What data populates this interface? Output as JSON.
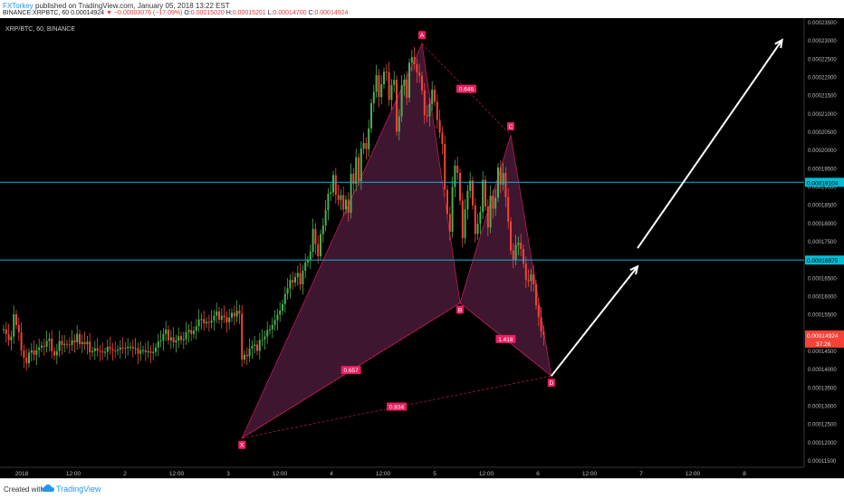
{
  "header": {
    "author": "FXTorkey",
    "published_text": "published on TradingView.com, January 05, 2018 13:22 EST",
    "symbol": "BINANCE:XRPBTC, 60",
    "last": "0.00014924",
    "change_arrow": "▼",
    "change": "−0.00003076 (−17.09%)",
    "ohlc_o_label": "O:",
    "ohlc_o": "0.00015020",
    "ohlc_h_label": "H:",
    "ohlc_h": "0.00015201",
    "ohlc_l_label": "L:",
    "ohlc_l": "0.00014700",
    "ohlc_c_label": "C:",
    "ohlc_c": "0.00014924"
  },
  "chart_legend": "XRP/BTC, 60, BINANCE",
  "footer": {
    "created_with": "Created with",
    "brand": "TradingView"
  },
  "colors": {
    "background": "#000000",
    "up": "#4caf50",
    "down": "#f44336",
    "pattern_fill": "#4a1a38",
    "pattern_line": "#e91e63",
    "point_label_bg": "#e91e63",
    "level_line": "#00bcd4",
    "last_price_bg": "#f44336",
    "level_label_bg": "#00bcd4",
    "arrow": "#ffffff"
  },
  "chart_data": {
    "type": "candlestick",
    "title": "",
    "symbol": "XRP/BTC",
    "interval": "60",
    "exchange": "BINANCE",
    "ylim": [
      0.000113,
      0.000236
    ],
    "y_ticks": [
      "0.00023500",
      "0.00023000",
      "0.00022500",
      "0.00022000",
      "0.00021500",
      "0.00021000",
      "0.00020500",
      "0.00020000",
      "0.00019500",
      "0.00019000",
      "0.00018500",
      "0.00018000",
      "0.00017500",
      "0.00017000",
      "0.00016500",
      "0.00016000",
      "0.00015500",
      "0.00015000",
      "0.00014500",
      "0.00014000",
      "0.00013500",
      "0.00013000",
      "0.00012500",
      "0.00012000",
      "0.00011500"
    ],
    "x_ticks": [
      "2018",
      "12:00",
      "2",
      "12:00",
      "3",
      "12:00",
      "4",
      "12:00",
      "5",
      "12:00",
      "6",
      "12:00",
      "7",
      "12:00",
      "8"
    ],
    "grid": false,
    "last_price_label": "0.00014924",
    "countdown_label": "37:26",
    "horizontal_levels": [
      {
        "value": 0.00019104,
        "label": "0.00019104"
      },
      {
        "value": 0.00016975,
        "label": "0.00016975"
      }
    ],
    "harmonic_points": [
      {
        "name": "X",
        "index": 94,
        "price": 0.000121
      },
      {
        "name": "A",
        "index": 165,
        "price": 0.000229
      },
      {
        "name": "B",
        "index": 180,
        "price": 0.000158
      },
      {
        "name": "C",
        "index": 200,
        "price": 0.000204
      },
      {
        "name": "D",
        "index": 216,
        "price": 0.000138
      }
    ],
    "ratios": [
      {
        "label": "0.657",
        "between": [
          "X",
          "B"
        ]
      },
      {
        "label": "0.646",
        "between": [
          "A",
          "C"
        ]
      },
      {
        "label": "1.418",
        "between": [
          "B",
          "D"
        ]
      },
      {
        "label": "0.834",
        "between": [
          "X",
          "D"
        ]
      }
    ],
    "projection_arrows": [
      {
        "from_index": 216,
        "from_price": 0.000138,
        "to_index": 250,
        "to_price": 0.000168
      },
      {
        "from_index": 250,
        "from_price": 0.000173,
        "to_index": 307,
        "to_price": 0.00023
      }
    ],
    "candle_count": 220,
    "candle_closes": [
      0.0001508,
      0.0001495,
      0.0001478,
      0.0001488,
      0.0001549,
      0.000152,
      0.00015,
      0.000145,
      0.000143,
      0.0001415,
      0.0001444,
      0.000145,
      0.0001438,
      0.0001451,
      0.0001458,
      0.0001463,
      0.000146,
      0.0001476,
      0.0001482,
      0.0001448,
      0.0001436,
      0.0001448,
      0.0001476,
      0.0001465,
      0.0001468,
      0.0001466,
      0.0001465,
      0.0001478,
      0.0001472,
      0.0001495,
      0.0001467,
      0.0001473,
      0.0001467,
      0.0001474,
      0.0001445,
      0.0001448,
      0.0001456,
      0.0001449,
      0.0001448,
      0.0001444,
      0.0001446,
      0.000146,
      0.0001454,
      0.000145,
      0.0001449,
      0.0001452,
      0.0001458,
      0.0001457,
      0.0001456,
      0.000146,
      0.000146,
      0.0001455,
      0.0001456,
      0.0001441,
      0.0001451,
      0.0001451,
      0.0001445,
      0.0001448,
      0.0001443,
      0.0001446,
      0.0001458,
      0.0001475,
      0.0001477,
      0.0001495,
      0.0001507,
      0.0001478,
      0.0001486,
      0.0001472,
      0.0001477,
      0.0001489,
      0.0001478,
      0.0001481,
      0.00015,
      0.0001506,
      0.0001495,
      0.0001504,
      0.0001516,
      0.0001535,
      0.0001536,
      0.0001524,
      0.0001528,
      0.0001526,
      0.0001532,
      0.0001545,
      0.0001557,
      0.0001534,
      0.0001545,
      0.0001541,
      0.0001527,
      0.000154,
      0.0001553,
      0.0001543,
      0.0001559,
      0.000155,
      0.0001425,
      0.0001438,
      0.0001434,
      0.0001455,
      0.0001462,
      0.0001466,
      0.0001449,
      0.0001478,
      0.000148,
      0.0001488,
      0.0001506,
      0.0001508,
      0.000152,
      0.0001533,
      0.0001548,
      0.0001559,
      0.0001577,
      0.0001605,
      0.000162,
      0.0001643,
      0.0001636,
      0.0001651,
      0.0001662,
      0.0001631,
      0.0001668,
      0.0001691,
      0.0001697,
      0.000172,
      0.0001783,
      0.0001741,
      0.0001708,
      0.0001768,
      0.0001792,
      0.0001834,
      0.0001879,
      0.0001883,
      0.000193,
      0.0001876,
      0.0001862,
      0.0001875,
      0.0001836,
      0.0001863,
      0.0001827,
      0.0001934,
      0.0001906,
      0.0001979,
      0.0001914,
      0.0002003,
      0.0002018,
      0.0002001,
      0.0002058,
      0.0002127,
      0.0002158,
      0.0002204,
      0.0002144,
      0.0002179,
      0.0002213,
      0.0002212,
      0.0002136,
      0.0002177,
      0.0002191,
      0.0002049,
      0.0002091,
      0.0002176,
      0.0002191,
      0.0002142,
      0.0002238,
      0.0002253,
      0.0002234,
      0.0002211,
      0.0002202,
      0.0002162,
      0.0002094,
      0.0002091,
      0.0002125,
      0.0002164,
      0.0002131,
      0.0002081,
      0.0002047,
      0.0002015,
      0.000189,
      0.0001824,
      0.0001775,
      0.0001898,
      0.0001956,
      0.0001936,
      0.000186,
      0.0001758,
      0.0001836,
      0.0001887,
      0.0001915,
      0.0001847,
      0.0001769,
      0.0001797,
      0.0001829,
      0.0001917,
      0.0001844,
      0.0001787,
      0.0001874,
      0.0001838,
      0.0001868,
      0.0001951,
      0.0001904,
      0.0001936,
      0.000187,
      0.0001803,
      0.0001724,
      0.0001699,
      0.0001739,
      0.0001745,
      0.0001728,
      0.0001688,
      0.0001644,
      0.000164,
      0.0001658,
      0.0001631,
      0.0001574,
      0.0001541,
      0.0001502,
      0.0001492
    ]
  }
}
